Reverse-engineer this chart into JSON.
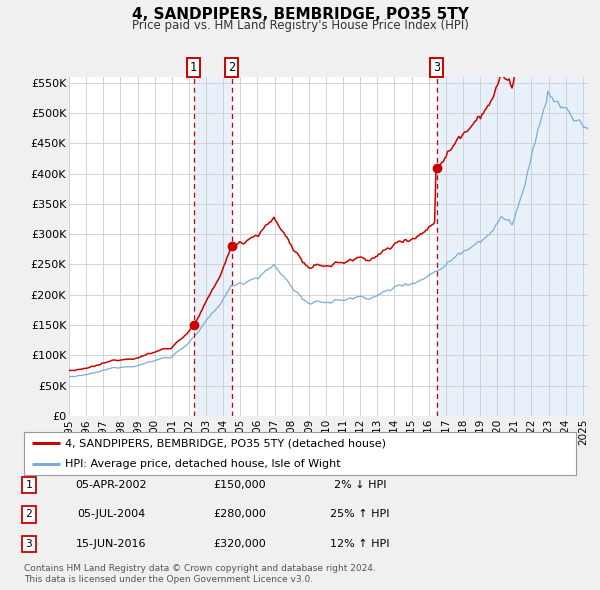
{
  "title": "4, SANDPIPERS, BEMBRIDGE, PO35 5TY",
  "subtitle": "Price paid vs. HM Land Registry's House Price Index (HPI)",
  "xlim": [
    1995.0,
    2025.3
  ],
  "ylim": [
    0,
    560000
  ],
  "yticks": [
    0,
    50000,
    100000,
    150000,
    200000,
    250000,
    300000,
    350000,
    400000,
    450000,
    500000,
    550000
  ],
  "ytick_labels": [
    "£0",
    "£50K",
    "£100K",
    "£150K",
    "£200K",
    "£250K",
    "£300K",
    "£350K",
    "£400K",
    "£450K",
    "£500K",
    "£550K"
  ],
  "xtick_years": [
    1995,
    1996,
    1997,
    1998,
    1999,
    2000,
    2001,
    2002,
    2003,
    2004,
    2005,
    2006,
    2007,
    2008,
    2009,
    2010,
    2011,
    2012,
    2013,
    2014,
    2015,
    2016,
    2017,
    2018,
    2019,
    2020,
    2021,
    2022,
    2023,
    2024,
    2025
  ],
  "sale_color": "#cc0000",
  "hpi_color": "#7aadda",
  "sale_label": "4, SANDPIPERS, BEMBRIDGE, PO35 5TY (detached house)",
  "hpi_label": "HPI: Average price, detached house, Isle of Wight",
  "transactions": [
    {
      "num": 1,
      "date": "05-APR-2002",
      "year": 2002.27,
      "price": 150000,
      "pct": "2%",
      "dir": "↓"
    },
    {
      "num": 2,
      "date": "05-JUL-2004",
      "year": 2004.51,
      "price": 280000,
      "pct": "25%",
      "dir": "↑"
    },
    {
      "num": 3,
      "date": "15-JUN-2016",
      "year": 2016.46,
      "price": 320000,
      "pct": "12%",
      "dir": "↑"
    }
  ],
  "footnote1": "Contains HM Land Registry data © Crown copyright and database right 2024.",
  "footnote2": "This data is licensed under the Open Government Licence v3.0.",
  "bg_color": "#f0f0f0",
  "plot_bg": "#ffffff"
}
